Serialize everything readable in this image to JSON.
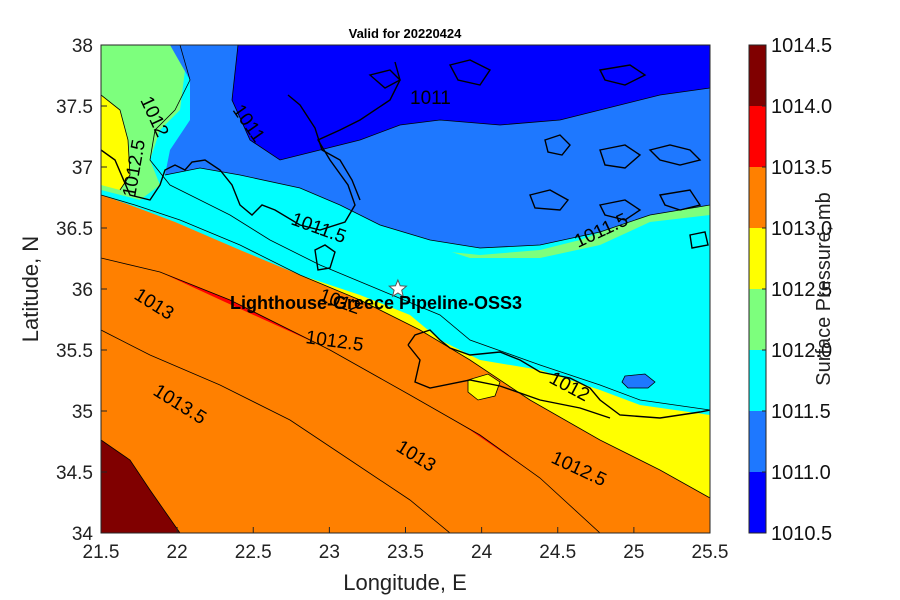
{
  "title": "Valid for 20220424",
  "x_axis": {
    "label": "Longitude, E",
    "ticks": [
      "21.5",
      "22",
      "22.5",
      "23",
      "23.5",
      "24",
      "24.5",
      "25",
      "25.5"
    ]
  },
  "y_axis": {
    "label": "Latitude, N",
    "ticks": [
      "34",
      "34.5",
      "35",
      "35.5",
      "36",
      "36.5",
      "37",
      "37.5",
      "38"
    ]
  },
  "colorbar": {
    "label": "Surface Pressure, mb",
    "ticks": [
      "1010.5",
      "1011.0",
      "1011.5",
      "1012.0",
      "1012.5",
      "1013.0",
      "1013.5",
      "1014.0",
      "1014.5"
    ],
    "colors": [
      "#0000ff",
      "#1e78ff",
      "#00ffff",
      "#7dff7d",
      "#ffff00",
      "#ff8000",
      "#ff0000",
      "#800000"
    ]
  },
  "site": {
    "name": "Lighthouse-Greece Pipeline-OSS3",
    "lon": 23.45,
    "lat": 36.0
  },
  "contour_labels": [
    "1011",
    "1011",
    "1012",
    "1012.5",
    "1011.5",
    "1011.5",
    "1012",
    "1012.5",
    "1013",
    "1013.5",
    "1013",
    "1012.5",
    "1012"
  ],
  "chart_data": {
    "type": "heatmap",
    "title": "Valid for 20220424",
    "xlabel": "Longitude, E",
    "ylabel": "Latitude, N",
    "xlim": [
      21.5,
      25.5
    ],
    "ylim": [
      34,
      38
    ],
    "color_scale": {
      "label": "Surface Pressure, mb",
      "range": [
        1010.5,
        1014.5
      ],
      "levels": [
        1010.5,
        1011.0,
        1011.5,
        1012.0,
        1012.5,
        1013.0,
        1013.5,
        1014.0,
        1014.5
      ]
    },
    "contour_levels": [
      1011,
      1011.5,
      1012,
      1012.5,
      1013,
      1013.5,
      1014
    ],
    "grid": false
  }
}
